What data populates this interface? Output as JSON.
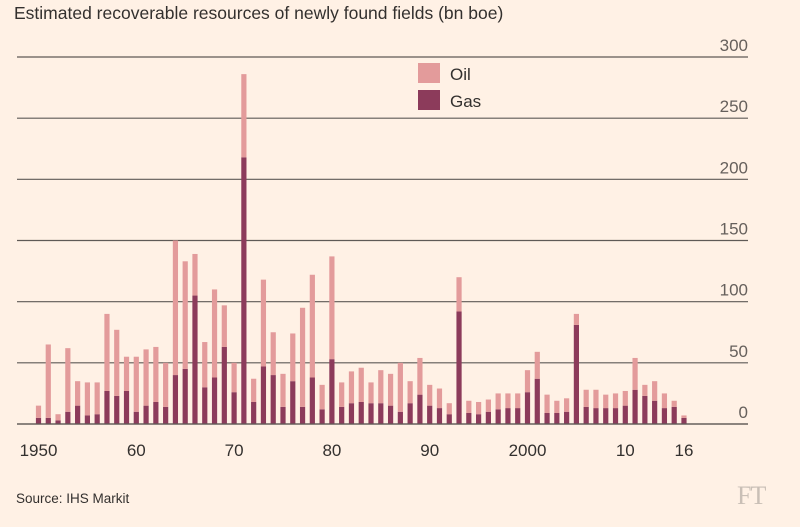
{
  "chart_data": {
    "type": "bar",
    "stacked": true,
    "title": "Estimated recoverable resources of newly found fields (bn boe)",
    "xlabel": "",
    "ylabel": "",
    "ylim": [
      0,
      300
    ],
    "yticks": [
      0,
      50,
      100,
      150,
      200,
      250,
      300
    ],
    "xtick_labels": [
      "1950",
      "60",
      "70",
      "80",
      "90",
      "2000",
      "10",
      "16"
    ],
    "xtick_years": [
      1950,
      1960,
      1970,
      1980,
      1990,
      2000,
      2010,
      2016
    ],
    "grid": true,
    "legend_position": "top-center",
    "categories": [
      1950,
      1951,
      1952,
      1953,
      1954,
      1955,
      1956,
      1957,
      1958,
      1959,
      1960,
      1961,
      1962,
      1963,
      1964,
      1965,
      1966,
      1967,
      1968,
      1969,
      1970,
      1971,
      1972,
      1973,
      1974,
      1975,
      1976,
      1977,
      1978,
      1979,
      1980,
      1981,
      1982,
      1983,
      1984,
      1985,
      1986,
      1987,
      1988,
      1989,
      1990,
      1991,
      1992,
      1993,
      1994,
      1995,
      1996,
      1997,
      1998,
      1999,
      2000,
      2001,
      2002,
      2003,
      2004,
      2005,
      2006,
      2007,
      2008,
      2009,
      2010,
      2011,
      2012,
      2013,
      2014,
      2015,
      2016
    ],
    "series": [
      {
        "name": "Gas",
        "color": "#8c3b5b",
        "values": [
          5,
          5,
          3,
          10,
          15,
          7,
          8,
          27,
          23,
          27,
          10,
          15,
          18,
          14,
          40,
          45,
          105,
          30,
          38,
          63,
          26,
          218,
          18,
          47,
          40,
          14,
          35,
          14,
          38,
          12,
          53,
          14,
          17,
          18,
          17,
          17,
          15,
          10,
          17,
          24,
          15,
          13,
          8,
          92,
          9,
          8,
          10,
          12,
          13,
          13,
          26,
          37,
          9,
          9,
          10,
          81,
          14,
          13,
          13,
          13,
          15,
          28,
          23,
          19,
          13,
          14,
          5
        ]
      },
      {
        "name": "Oil",
        "color": "#e39b9b",
        "values": [
          10,
          60,
          5,
          52,
          20,
          27,
          26,
          63,
          54,
          28,
          45,
          46,
          45,
          36,
          110,
          88,
          34,
          37,
          72,
          34,
          24,
          68,
          19,
          71,
          35,
          27,
          39,
          81,
          84,
          20,
          84,
          20,
          26,
          28,
          17,
          27,
          26,
          40,
          18,
          30,
          17,
          16,
          9,
          28,
          10,
          10,
          10,
          13,
          12,
          12,
          18,
          22,
          15,
          10,
          11,
          9,
          14,
          15,
          11,
          12,
          12,
          26,
          9,
          16,
          12,
          5,
          2
        ]
      }
    ]
  },
  "source_label": "Source: IHS Markit",
  "brand_label": "FT"
}
